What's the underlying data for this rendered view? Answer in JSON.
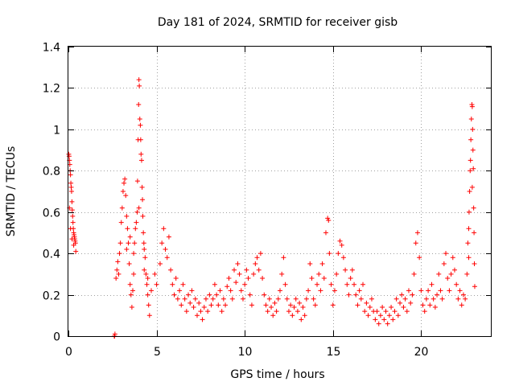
{
  "chart_data": {
    "type": "scatter",
    "title": "Day 181 of 2024, SRMTID for receiver gisb",
    "xlabel": "GPS time / hours",
    "ylabel": "SRMTID / TECUs",
    "xlim": [
      0,
      24
    ],
    "ylim": [
      0,
      1.4
    ],
    "xticks": [
      0,
      5,
      10,
      15,
      20
    ],
    "xtick_labels": [
      "0",
      "5",
      "10",
      "15",
      "20"
    ],
    "yticks": [
      0,
      0.2,
      0.4,
      0.6,
      0.8,
      1,
      1.2,
      1.4
    ],
    "ytick_labels": [
      "0",
      "0.2",
      "0.4",
      "0.6",
      "0.8",
      "1",
      "1.2",
      "1.4"
    ],
    "grid": true,
    "marker": "+",
    "color": "#ff0000",
    "series": [
      {
        "name": "SRMTID",
        "points": [
          [
            0.02,
            0.88
          ],
          [
            0.04,
            0.87
          ],
          [
            0.06,
            0.85
          ],
          [
            0.08,
            0.83
          ],
          [
            0.1,
            0.8
          ],
          [
            0.12,
            0.78
          ],
          [
            0.14,
            0.74
          ],
          [
            0.16,
            0.72
          ],
          [
            0.18,
            0.7
          ],
          [
            0.2,
            0.65
          ],
          [
            0.22,
            0.61
          ],
          [
            0.24,
            0.58
          ],
          [
            0.26,
            0.55
          ],
          [
            0.28,
            0.52
          ],
          [
            0.3,
            0.5
          ],
          [
            0.32,
            0.49
          ],
          [
            0.34,
            0.48
          ],
          [
            0.36,
            0.47
          ],
          [
            0.38,
            0.46
          ],
          [
            0.4,
            0.45
          ],
          [
            0.42,
            0.41
          ],
          [
            0.06,
            0.62
          ],
          [
            0.12,
            0.52
          ],
          [
            0.2,
            0.47
          ],
          [
            0.3,
            0.44
          ],
          [
            2.6,
            0.0
          ],
          [
            2.62,
            0.0
          ],
          [
            2.64,
            0.01
          ],
          [
            2.7,
            0.28
          ],
          [
            2.75,
            0.32
          ],
          [
            2.8,
            0.36
          ],
          [
            2.85,
            0.3
          ],
          [
            2.9,
            0.4
          ],
          [
            2.95,
            0.45
          ],
          [
            3.0,
            0.55
          ],
          [
            3.05,
            0.62
          ],
          [
            3.1,
            0.7
          ],
          [
            3.15,
            0.74
          ],
          [
            3.2,
            0.76
          ],
          [
            3.25,
            0.68
          ],
          [
            3.3,
            0.58
          ],
          [
            3.35,
            0.52
          ],
          [
            3.4,
            0.45
          ],
          [
            3.45,
            0.35
          ],
          [
            3.5,
            0.25
          ],
          [
            3.55,
            0.2
          ],
          [
            3.6,
            0.14
          ],
          [
            3.65,
            0.22
          ],
          [
            3.7,
            0.3
          ],
          [
            3.75,
            0.45
          ],
          [
            3.8,
            0.52
          ],
          [
            3.85,
            0.55
          ],
          [
            3.9,
            0.6
          ],
          [
            3.92,
            0.75
          ],
          [
            3.95,
            0.95
          ],
          [
            3.98,
            1.12
          ],
          [
            4.0,
            1.24
          ],
          [
            4.02,
            1.21
          ],
          [
            4.05,
            1.05
          ],
          [
            4.08,
            1.02
          ],
          [
            4.1,
            0.95
          ],
          [
            4.12,
            0.88
          ],
          [
            4.15,
            0.85
          ],
          [
            4.18,
            0.72
          ],
          [
            4.2,
            0.66
          ],
          [
            4.22,
            0.58
          ],
          [
            4.25,
            0.5
          ],
          [
            4.28,
            0.45
          ],
          [
            4.3,
            0.42
          ],
          [
            4.35,
            0.38
          ],
          [
            4.4,
            0.3
          ],
          [
            4.45,
            0.25
          ],
          [
            4.5,
            0.2
          ],
          [
            4.55,
            0.15
          ],
          [
            4.6,
            0.1
          ],
          [
            3.3,
            0.42
          ],
          [
            3.5,
            0.48
          ],
          [
            3.7,
            0.4
          ],
          [
            4.0,
            0.62
          ],
          [
            4.3,
            0.32
          ],
          [
            4.5,
            0.28
          ],
          [
            4.7,
            0.22
          ],
          [
            4.9,
            0.3
          ],
          [
            5.0,
            0.25
          ],
          [
            5.2,
            0.35
          ],
          [
            5.3,
            0.45
          ],
          [
            5.4,
            0.52
          ],
          [
            5.5,
            0.42
          ],
          [
            5.6,
            0.38
          ],
          [
            5.7,
            0.48
          ],
          [
            5.8,
            0.32
          ],
          [
            5.9,
            0.25
          ],
          [
            6.0,
            0.2
          ],
          [
            6.1,
            0.28
          ],
          [
            6.2,
            0.18
          ],
          [
            6.3,
            0.22
          ],
          [
            6.4,
            0.15
          ],
          [
            6.5,
            0.25
          ],
          [
            6.6,
            0.18
          ],
          [
            6.7,
            0.12
          ],
          [
            6.8,
            0.2
          ],
          [
            6.9,
            0.16
          ],
          [
            7.0,
            0.22
          ],
          [
            7.1,
            0.14
          ],
          [
            7.2,
            0.18
          ],
          [
            7.3,
            0.1
          ],
          [
            7.4,
            0.16
          ],
          [
            7.5,
            0.12
          ],
          [
            7.6,
            0.08
          ],
          [
            7.7,
            0.14
          ],
          [
            7.8,
            0.18
          ],
          [
            7.9,
            0.12
          ],
          [
            8.0,
            0.2
          ],
          [
            8.1,
            0.15
          ],
          [
            8.2,
            0.18
          ],
          [
            8.3,
            0.25
          ],
          [
            8.4,
            0.2
          ],
          [
            8.5,
            0.15
          ],
          [
            8.6,
            0.22
          ],
          [
            8.7,
            0.12
          ],
          [
            8.8,
            0.18
          ],
          [
            8.9,
            0.15
          ],
          [
            9.0,
            0.24
          ],
          [
            9.1,
            0.28
          ],
          [
            9.2,
            0.22
          ],
          [
            9.3,
            0.18
          ],
          [
            9.4,
            0.32
          ],
          [
            9.5,
            0.26
          ],
          [
            9.6,
            0.35
          ],
          [
            9.7,
            0.3
          ],
          [
            9.8,
            0.22
          ],
          [
            9.9,
            0.18
          ],
          [
            10.0,
            0.25
          ],
          [
            10.1,
            0.32
          ],
          [
            10.2,
            0.28
          ],
          [
            10.3,
            0.2
          ],
          [
            10.4,
            0.15
          ],
          [
            10.5,
            0.3
          ],
          [
            10.6,
            0.35
          ],
          [
            10.7,
            0.38
          ],
          [
            10.8,
            0.32
          ],
          [
            10.9,
            0.4
          ],
          [
            11.0,
            0.28
          ],
          [
            11.1,
            0.2
          ],
          [
            11.2,
            0.15
          ],
          [
            11.3,
            0.12
          ],
          [
            11.4,
            0.18
          ],
          [
            11.5,
            0.14
          ],
          [
            11.6,
            0.1
          ],
          [
            11.7,
            0.16
          ],
          [
            11.8,
            0.12
          ],
          [
            11.9,
            0.18
          ],
          [
            12.0,
            0.22
          ],
          [
            12.1,
            0.3
          ],
          [
            12.2,
            0.38
          ],
          [
            12.3,
            0.25
          ],
          [
            12.4,
            0.18
          ],
          [
            12.5,
            0.12
          ],
          [
            12.6,
            0.15
          ],
          [
            12.7,
            0.1
          ],
          [
            12.8,
            0.14
          ],
          [
            12.9,
            0.18
          ],
          [
            13.0,
            0.12
          ],
          [
            13.1,
            0.16
          ],
          [
            13.2,
            0.08
          ],
          [
            13.3,
            0.14
          ],
          [
            13.4,
            0.1
          ],
          [
            13.5,
            0.18
          ],
          [
            13.6,
            0.22
          ],
          [
            13.7,
            0.35
          ],
          [
            13.8,
            0.28
          ],
          [
            13.9,
            0.18
          ],
          [
            14.0,
            0.15
          ],
          [
            14.1,
            0.25
          ],
          [
            14.2,
            0.3
          ],
          [
            14.3,
            0.22
          ],
          [
            14.4,
            0.35
          ],
          [
            14.5,
            0.28
          ],
          [
            14.6,
            0.5
          ],
          [
            14.7,
            0.57
          ],
          [
            14.75,
            0.56
          ],
          [
            14.8,
            0.4
          ],
          [
            14.9,
            0.25
          ],
          [
            15.0,
            0.15
          ],
          [
            15.1,
            0.22
          ],
          [
            15.2,
            0.3
          ],
          [
            15.3,
            0.4
          ],
          [
            15.4,
            0.46
          ],
          [
            15.5,
            0.44
          ],
          [
            15.6,
            0.38
          ],
          [
            15.7,
            0.32
          ],
          [
            15.8,
            0.25
          ],
          [
            15.9,
            0.2
          ],
          [
            16.0,
            0.28
          ],
          [
            16.1,
            0.32
          ],
          [
            16.2,
            0.25
          ],
          [
            16.3,
            0.2
          ],
          [
            16.4,
            0.15
          ],
          [
            16.5,
            0.22
          ],
          [
            16.6,
            0.18
          ],
          [
            16.7,
            0.25
          ],
          [
            16.8,
            0.12
          ],
          [
            16.9,
            0.16
          ],
          [
            17.0,
            0.1
          ],
          [
            17.1,
            0.14
          ],
          [
            17.2,
            0.18
          ],
          [
            17.3,
            0.12
          ],
          [
            17.4,
            0.08
          ],
          [
            17.5,
            0.12
          ],
          [
            17.6,
            0.06
          ],
          [
            17.7,
            0.1
          ],
          [
            17.8,
            0.14
          ],
          [
            17.9,
            0.08
          ],
          [
            18.0,
            0.12
          ],
          [
            18.1,
            0.06
          ],
          [
            18.2,
            0.1
          ],
          [
            18.3,
            0.14
          ],
          [
            18.4,
            0.08
          ],
          [
            18.5,
            0.12
          ],
          [
            18.6,
            0.18
          ],
          [
            18.7,
            0.1
          ],
          [
            18.8,
            0.16
          ],
          [
            18.9,
            0.2
          ],
          [
            19.0,
            0.14
          ],
          [
            19.1,
            0.18
          ],
          [
            19.2,
            0.12
          ],
          [
            19.3,
            0.22
          ],
          [
            19.4,
            0.16
          ],
          [
            19.5,
            0.2
          ],
          [
            19.6,
            0.3
          ],
          [
            19.7,
            0.45
          ],
          [
            19.8,
            0.5
          ],
          [
            19.9,
            0.38
          ],
          [
            20.0,
            0.22
          ],
          [
            20.1,
            0.15
          ],
          [
            20.2,
            0.12
          ],
          [
            20.3,
            0.18
          ],
          [
            20.4,
            0.22
          ],
          [
            20.5,
            0.15
          ],
          [
            20.6,
            0.25
          ],
          [
            20.7,
            0.18
          ],
          [
            20.8,
            0.14
          ],
          [
            20.9,
            0.2
          ],
          [
            21.0,
            0.3
          ],
          [
            21.1,
            0.22
          ],
          [
            21.2,
            0.18
          ],
          [
            21.3,
            0.35
          ],
          [
            21.4,
            0.4
          ],
          [
            21.5,
            0.28
          ],
          [
            21.6,
            0.22
          ],
          [
            21.7,
            0.3
          ],
          [
            21.8,
            0.38
          ],
          [
            21.9,
            0.32
          ],
          [
            22.0,
            0.25
          ],
          [
            22.1,
            0.18
          ],
          [
            22.2,
            0.22
          ],
          [
            22.3,
            0.15
          ],
          [
            22.4,
            0.2
          ],
          [
            22.5,
            0.18
          ],
          [
            22.6,
            0.3
          ],
          [
            22.65,
            0.45
          ],
          [
            22.7,
            0.52
          ],
          [
            22.72,
            0.6
          ],
          [
            22.75,
            0.7
          ],
          [
            22.78,
            0.8
          ],
          [
            22.8,
            0.85
          ],
          [
            22.82,
            0.95
          ],
          [
            22.85,
            1.05
          ],
          [
            22.88,
            1.12
          ],
          [
            22.9,
            1.11
          ],
          [
            22.92,
            1.0
          ],
          [
            22.94,
            0.9
          ],
          [
            22.96,
            0.81
          ],
          [
            22.98,
            0.62
          ],
          [
            23.0,
            0.5
          ],
          [
            23.02,
            0.35
          ],
          [
            23.04,
            0.24
          ],
          [
            22.7,
            0.38
          ],
          [
            22.9,
            0.72
          ]
        ]
      }
    ]
  }
}
